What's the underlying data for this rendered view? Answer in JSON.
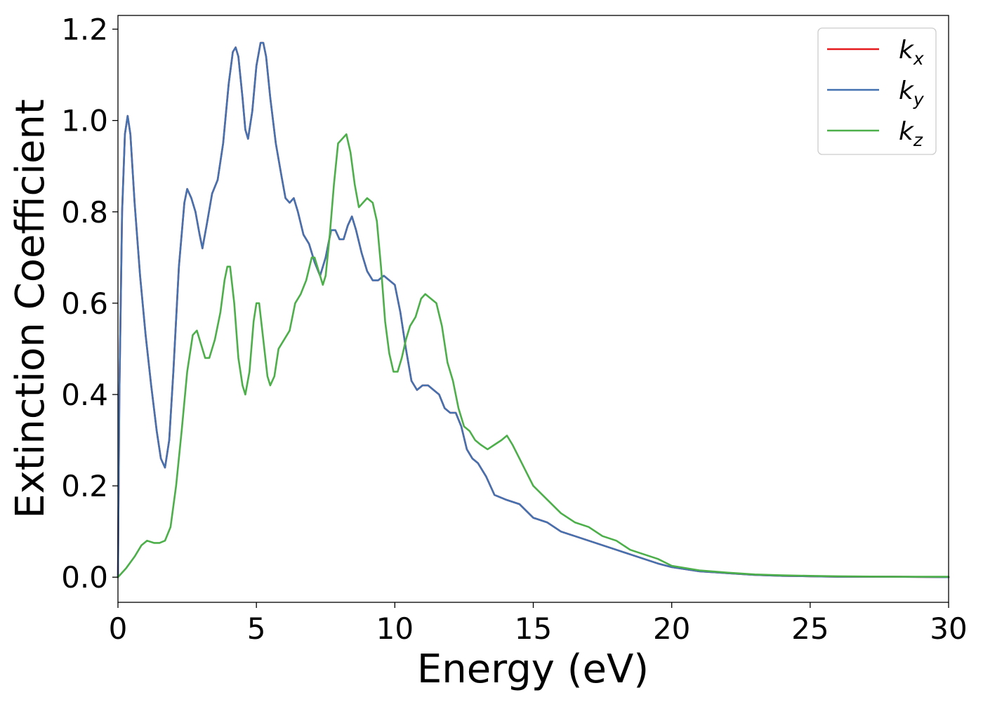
{
  "chart_data": {
    "type": "line",
    "title": "",
    "xlabel": "Energy (eV)",
    "ylabel": "Extinction Coefficient",
    "xlim": [
      0,
      30
    ],
    "ylim": [
      -0.055,
      1.23
    ],
    "xticks": [
      0,
      5,
      10,
      15,
      20,
      25,
      30
    ],
    "xtick_labels": [
      "0",
      "5",
      "10",
      "15",
      "20",
      "25",
      "30"
    ],
    "yticks": [
      0.0,
      0.2,
      0.4,
      0.6,
      0.8,
      1.0,
      1.2
    ],
    "ytick_labels": [
      "0.0",
      "0.2",
      "0.4",
      "0.6",
      "0.8",
      "1.0",
      "1.2"
    ],
    "grid": false,
    "legend_position": "top-right",
    "series": [
      {
        "name": "k",
        "subscript": "x",
        "color": "#e41a1c",
        "points": [
          [
            0,
            0.0
          ],
          [
            0.05,
            0.4
          ],
          [
            0.15,
            0.8
          ],
          [
            0.25,
            0.97
          ],
          [
            0.35,
            1.01
          ],
          [
            0.45,
            0.97
          ],
          [
            0.6,
            0.82
          ],
          [
            0.8,
            0.66
          ],
          [
            1.0,
            0.53
          ],
          [
            1.2,
            0.42
          ],
          [
            1.4,
            0.32
          ],
          [
            1.55,
            0.26
          ],
          [
            1.7,
            0.24
          ],
          [
            1.85,
            0.3
          ],
          [
            2.0,
            0.45
          ],
          [
            2.2,
            0.68
          ],
          [
            2.4,
            0.82
          ],
          [
            2.5,
            0.85
          ],
          [
            2.65,
            0.83
          ],
          [
            2.8,
            0.8
          ],
          [
            2.95,
            0.75
          ],
          [
            3.05,
            0.72
          ],
          [
            3.2,
            0.77
          ],
          [
            3.4,
            0.84
          ],
          [
            3.6,
            0.87
          ],
          [
            3.8,
            0.95
          ],
          [
            4.0,
            1.08
          ],
          [
            4.15,
            1.15
          ],
          [
            4.25,
            1.16
          ],
          [
            4.35,
            1.14
          ],
          [
            4.5,
            1.05
          ],
          [
            4.6,
            0.98
          ],
          [
            4.7,
            0.96
          ],
          [
            4.85,
            1.02
          ],
          [
            5.0,
            1.12
          ],
          [
            5.15,
            1.17
          ],
          [
            5.25,
            1.17
          ],
          [
            5.35,
            1.14
          ],
          [
            5.5,
            1.05
          ],
          [
            5.7,
            0.95
          ],
          [
            5.9,
            0.88
          ],
          [
            6.05,
            0.83
          ],
          [
            6.2,
            0.82
          ],
          [
            6.35,
            0.83
          ],
          [
            6.5,
            0.8
          ],
          [
            6.7,
            0.75
          ],
          [
            6.9,
            0.73
          ],
          [
            7.1,
            0.69
          ],
          [
            7.3,
            0.66
          ],
          [
            7.5,
            0.7
          ],
          [
            7.7,
            0.76
          ],
          [
            7.85,
            0.76
          ],
          [
            8.0,
            0.74
          ],
          [
            8.15,
            0.74
          ],
          [
            8.3,
            0.77
          ],
          [
            8.45,
            0.79
          ],
          [
            8.6,
            0.76
          ],
          [
            8.8,
            0.71
          ],
          [
            9.0,
            0.67
          ],
          [
            9.2,
            0.65
          ],
          [
            9.4,
            0.65
          ],
          [
            9.6,
            0.66
          ],
          [
            9.8,
            0.65
          ],
          [
            10.0,
            0.64
          ],
          [
            10.2,
            0.58
          ],
          [
            10.4,
            0.5
          ],
          [
            10.6,
            0.43
          ],
          [
            10.8,
            0.41
          ],
          [
            11.0,
            0.42
          ],
          [
            11.2,
            0.42
          ],
          [
            11.4,
            0.41
          ],
          [
            11.6,
            0.4
          ],
          [
            11.8,
            0.37
          ],
          [
            12.0,
            0.36
          ],
          [
            12.2,
            0.36
          ],
          [
            12.4,
            0.33
          ],
          [
            12.6,
            0.28
          ],
          [
            12.8,
            0.26
          ],
          [
            13.0,
            0.25
          ],
          [
            13.3,
            0.22
          ],
          [
            13.6,
            0.18
          ],
          [
            14.0,
            0.17
          ],
          [
            14.5,
            0.16
          ],
          [
            15.0,
            0.13
          ],
          [
            15.5,
            0.12
          ],
          [
            16.0,
            0.1
          ],
          [
            16.5,
            0.09
          ],
          [
            17.0,
            0.08
          ],
          [
            17.5,
            0.07
          ],
          [
            18.0,
            0.06
          ],
          [
            18.5,
            0.05
          ],
          [
            19.0,
            0.04
          ],
          [
            19.5,
            0.03
          ],
          [
            20.0,
            0.022
          ],
          [
            21.0,
            0.013
          ],
          [
            22.0,
            0.009
          ],
          [
            23.0,
            0.005
          ],
          [
            24.0,
            0.003
          ],
          [
            25.0,
            0.002
          ],
          [
            26.0,
            0.001
          ],
          [
            28.0,
            0.001
          ],
          [
            30.0,
            0.0
          ]
        ]
      },
      {
        "name": "k",
        "subscript": "y",
        "color": "#4472b0",
        "points": [
          [
            0,
            0.0
          ],
          [
            0.05,
            0.4
          ],
          [
            0.15,
            0.8
          ],
          [
            0.25,
            0.97
          ],
          [
            0.35,
            1.01
          ],
          [
            0.45,
            0.97
          ],
          [
            0.6,
            0.82
          ],
          [
            0.8,
            0.66
          ],
          [
            1.0,
            0.53
          ],
          [
            1.2,
            0.42
          ],
          [
            1.4,
            0.32
          ],
          [
            1.55,
            0.26
          ],
          [
            1.7,
            0.24
          ],
          [
            1.85,
            0.3
          ],
          [
            2.0,
            0.45
          ],
          [
            2.2,
            0.68
          ],
          [
            2.4,
            0.82
          ],
          [
            2.5,
            0.85
          ],
          [
            2.65,
            0.83
          ],
          [
            2.8,
            0.8
          ],
          [
            2.95,
            0.75
          ],
          [
            3.05,
            0.72
          ],
          [
            3.2,
            0.77
          ],
          [
            3.4,
            0.84
          ],
          [
            3.6,
            0.87
          ],
          [
            3.8,
            0.95
          ],
          [
            4.0,
            1.08
          ],
          [
            4.15,
            1.15
          ],
          [
            4.25,
            1.16
          ],
          [
            4.35,
            1.14
          ],
          [
            4.5,
            1.05
          ],
          [
            4.6,
            0.98
          ],
          [
            4.7,
            0.96
          ],
          [
            4.85,
            1.02
          ],
          [
            5.0,
            1.12
          ],
          [
            5.15,
            1.17
          ],
          [
            5.25,
            1.17
          ],
          [
            5.35,
            1.14
          ],
          [
            5.5,
            1.05
          ],
          [
            5.7,
            0.95
          ],
          [
            5.9,
            0.88
          ],
          [
            6.05,
            0.83
          ],
          [
            6.2,
            0.82
          ],
          [
            6.35,
            0.83
          ],
          [
            6.5,
            0.8
          ],
          [
            6.7,
            0.75
          ],
          [
            6.9,
            0.73
          ],
          [
            7.1,
            0.69
          ],
          [
            7.3,
            0.66
          ],
          [
            7.5,
            0.7
          ],
          [
            7.7,
            0.76
          ],
          [
            7.85,
            0.76
          ],
          [
            8.0,
            0.74
          ],
          [
            8.15,
            0.74
          ],
          [
            8.3,
            0.77
          ],
          [
            8.45,
            0.79
          ],
          [
            8.6,
            0.76
          ],
          [
            8.8,
            0.71
          ],
          [
            9.0,
            0.67
          ],
          [
            9.2,
            0.65
          ],
          [
            9.4,
            0.65
          ],
          [
            9.6,
            0.66
          ],
          [
            9.8,
            0.65
          ],
          [
            10.0,
            0.64
          ],
          [
            10.2,
            0.58
          ],
          [
            10.4,
            0.5
          ],
          [
            10.6,
            0.43
          ],
          [
            10.8,
            0.41
          ],
          [
            11.0,
            0.42
          ],
          [
            11.2,
            0.42
          ],
          [
            11.4,
            0.41
          ],
          [
            11.6,
            0.4
          ],
          [
            11.8,
            0.37
          ],
          [
            12.0,
            0.36
          ],
          [
            12.2,
            0.36
          ],
          [
            12.4,
            0.33
          ],
          [
            12.6,
            0.28
          ],
          [
            12.8,
            0.26
          ],
          [
            13.0,
            0.25
          ],
          [
            13.3,
            0.22
          ],
          [
            13.6,
            0.18
          ],
          [
            14.0,
            0.17
          ],
          [
            14.5,
            0.16
          ],
          [
            15.0,
            0.13
          ],
          [
            15.5,
            0.12
          ],
          [
            16.0,
            0.1
          ],
          [
            16.5,
            0.09
          ],
          [
            17.0,
            0.08
          ],
          [
            17.5,
            0.07
          ],
          [
            18.0,
            0.06
          ],
          [
            18.5,
            0.05
          ],
          [
            19.0,
            0.04
          ],
          [
            19.5,
            0.03
          ],
          [
            20.0,
            0.022
          ],
          [
            21.0,
            0.013
          ],
          [
            22.0,
            0.009
          ],
          [
            23.0,
            0.005
          ],
          [
            24.0,
            0.003
          ],
          [
            25.0,
            0.002
          ],
          [
            26.0,
            0.001
          ],
          [
            28.0,
            0.001
          ],
          [
            30.0,
            0.0
          ]
        ]
      },
      {
        "name": "k",
        "subscript": "z",
        "color": "#4daf4a",
        "points": [
          [
            0,
            0.0
          ],
          [
            0.3,
            0.02
          ],
          [
            0.6,
            0.045
          ],
          [
            0.85,
            0.07
          ],
          [
            1.05,
            0.08
          ],
          [
            1.3,
            0.075
          ],
          [
            1.5,
            0.075
          ],
          [
            1.7,
            0.08
          ],
          [
            1.9,
            0.11
          ],
          [
            2.1,
            0.2
          ],
          [
            2.3,
            0.32
          ],
          [
            2.5,
            0.45
          ],
          [
            2.7,
            0.53
          ],
          [
            2.85,
            0.54
          ],
          [
            3.0,
            0.51
          ],
          [
            3.15,
            0.48
          ],
          [
            3.3,
            0.48
          ],
          [
            3.5,
            0.52
          ],
          [
            3.7,
            0.58
          ],
          [
            3.85,
            0.65
          ],
          [
            3.95,
            0.68
          ],
          [
            4.05,
            0.68
          ],
          [
            4.2,
            0.6
          ],
          [
            4.35,
            0.48
          ],
          [
            4.5,
            0.42
          ],
          [
            4.6,
            0.4
          ],
          [
            4.75,
            0.45
          ],
          [
            4.9,
            0.56
          ],
          [
            5.0,
            0.6
          ],
          [
            5.1,
            0.6
          ],
          [
            5.25,
            0.52
          ],
          [
            5.4,
            0.44
          ],
          [
            5.5,
            0.42
          ],
          [
            5.65,
            0.44
          ],
          [
            5.8,
            0.5
          ],
          [
            6.0,
            0.52
          ],
          [
            6.2,
            0.54
          ],
          [
            6.4,
            0.6
          ],
          [
            6.6,
            0.62
          ],
          [
            6.8,
            0.65
          ],
          [
            7.0,
            0.7
          ],
          [
            7.1,
            0.7
          ],
          [
            7.25,
            0.67
          ],
          [
            7.4,
            0.64
          ],
          [
            7.5,
            0.66
          ],
          [
            7.65,
            0.75
          ],
          [
            7.8,
            0.86
          ],
          [
            7.95,
            0.95
          ],
          [
            8.1,
            0.96
          ],
          [
            8.25,
            0.97
          ],
          [
            8.4,
            0.93
          ],
          [
            8.55,
            0.86
          ],
          [
            8.7,
            0.81
          ],
          [
            8.85,
            0.82
          ],
          [
            9.0,
            0.83
          ],
          [
            9.2,
            0.82
          ],
          [
            9.35,
            0.78
          ],
          [
            9.5,
            0.68
          ],
          [
            9.65,
            0.56
          ],
          [
            9.8,
            0.49
          ],
          [
            9.95,
            0.45
          ],
          [
            10.1,
            0.45
          ],
          [
            10.25,
            0.48
          ],
          [
            10.4,
            0.52
          ],
          [
            10.55,
            0.55
          ],
          [
            10.75,
            0.57
          ],
          [
            10.95,
            0.61
          ],
          [
            11.1,
            0.62
          ],
          [
            11.3,
            0.61
          ],
          [
            11.5,
            0.6
          ],
          [
            11.7,
            0.55
          ],
          [
            11.9,
            0.47
          ],
          [
            12.1,
            0.43
          ],
          [
            12.3,
            0.37
          ],
          [
            12.5,
            0.33
          ],
          [
            12.7,
            0.32
          ],
          [
            12.9,
            0.3
          ],
          [
            13.1,
            0.29
          ],
          [
            13.35,
            0.28
          ],
          [
            13.6,
            0.29
          ],
          [
            13.85,
            0.3
          ],
          [
            14.05,
            0.31
          ],
          [
            14.25,
            0.29
          ],
          [
            14.5,
            0.26
          ],
          [
            14.75,
            0.23
          ],
          [
            15.0,
            0.2
          ],
          [
            15.5,
            0.17
          ],
          [
            16.0,
            0.14
          ],
          [
            16.5,
            0.12
          ],
          [
            17.0,
            0.11
          ],
          [
            17.5,
            0.09
          ],
          [
            18.0,
            0.08
          ],
          [
            18.5,
            0.06
          ],
          [
            19.0,
            0.05
          ],
          [
            19.5,
            0.04
          ],
          [
            20.0,
            0.025
          ],
          [
            21.0,
            0.015
          ],
          [
            22.0,
            0.01
          ],
          [
            23.0,
            0.006
          ],
          [
            24.0,
            0.004
          ],
          [
            25.0,
            0.003
          ],
          [
            26.0,
            0.002
          ],
          [
            28.0,
            0.001
          ],
          [
            30.0,
            0.001
          ]
        ]
      }
    ]
  }
}
